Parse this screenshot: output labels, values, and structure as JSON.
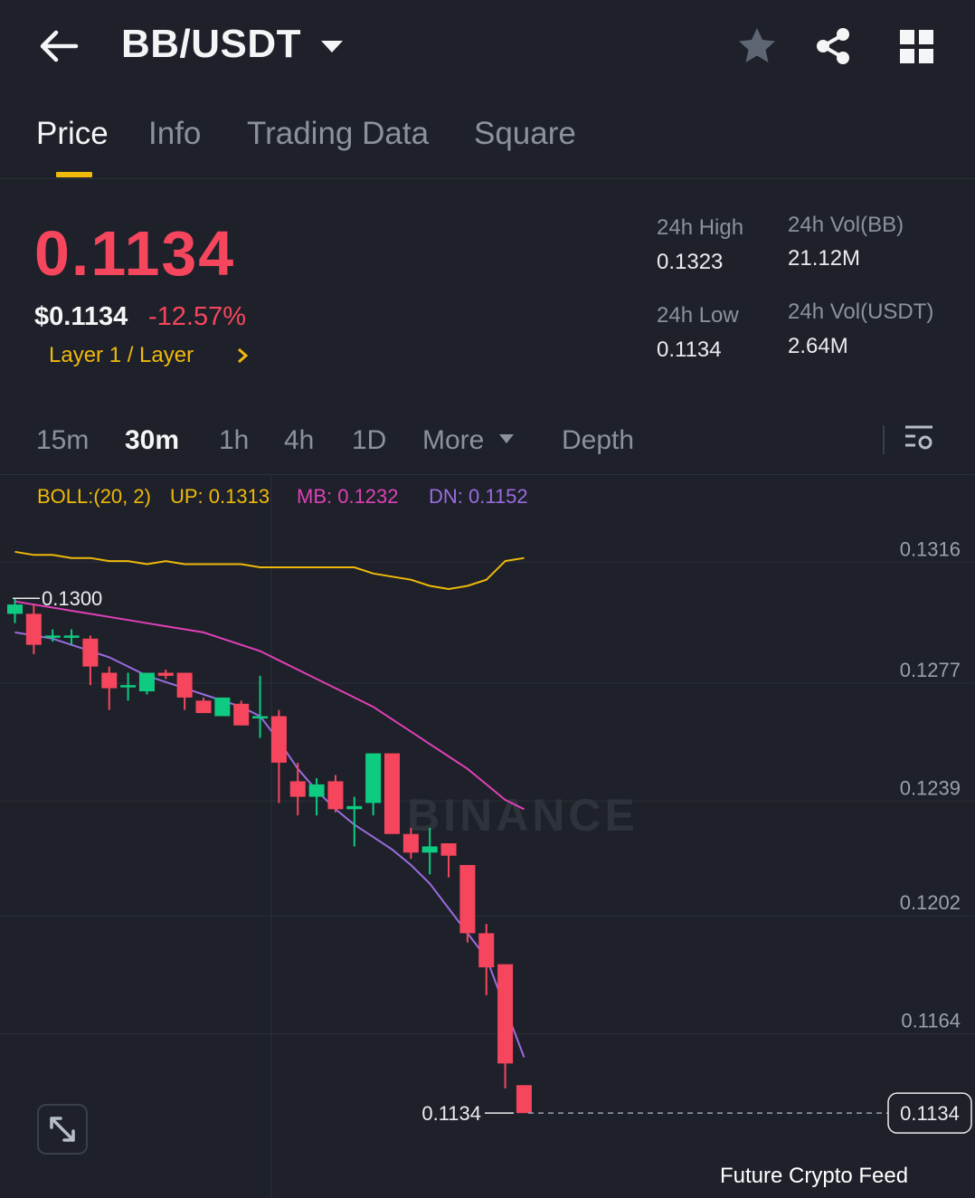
{
  "header": {
    "pair": "BB/USDT",
    "icons": {
      "back": "arrow-left-icon",
      "caret": "caret-down-icon",
      "favorite": "star-icon",
      "share": "share-icon",
      "menu": "grid-icon"
    }
  },
  "tabs": [
    {
      "label": "Price",
      "active": true
    },
    {
      "label": "Info",
      "active": false
    },
    {
      "label": "Trading Data",
      "active": false
    },
    {
      "label": "Square",
      "active": false
    }
  ],
  "price": {
    "last": "0.1134",
    "usd": "$0.1134",
    "change": "-12.57%",
    "sector": "Layer 1 / Layer"
  },
  "stats": {
    "high_label": "24h High",
    "high": "0.1323",
    "low_label": "24h Low",
    "low": "0.1134",
    "vol_base_label": "24h Vol(BB)",
    "vol_base": "21.12M",
    "vol_quote_label": "24h Vol(USDT)",
    "vol_quote": "2.64M"
  },
  "intervals": {
    "items": [
      "15m",
      "30m",
      "1h",
      "4h",
      "1D",
      "More"
    ],
    "active": "30m",
    "depth": "Depth"
  },
  "boll": {
    "title": "BOLL:(20, 2)",
    "up": "UP: 0.1313",
    "mb": "MB: 0.1232",
    "dn": "DN: 0.1152"
  },
  "colors": {
    "up": "#0ecb81",
    "down": "#f6465d",
    "boll_up": "#f0b90b",
    "boll_mb": "#e040b8",
    "boll_dn": "#9b6be0",
    "accent": "#f0b90b"
  },
  "chart_data": {
    "type": "candlestick",
    "interval": "30m",
    "y_ticks": [
      "0.1316",
      "0.1277",
      "0.1239",
      "0.1202",
      "0.1164"
    ],
    "ylim": [
      0.1118,
      0.1331
    ],
    "high_marker": "0.1300",
    "last_price_marker": "0.1134",
    "right_price_tag": "0.1134",
    "watermark": "BINANCE",
    "candles": [
      {
        "o": 0.1295,
        "h": 0.13,
        "l": 0.1292,
        "c": 0.1298
      },
      {
        "o": 0.1295,
        "h": 0.1298,
        "l": 0.1282,
        "c": 0.1285
      },
      {
        "o": 0.1288,
        "h": 0.129,
        "l": 0.1286,
        "c": 0.1288
      },
      {
        "o": 0.1288,
        "h": 0.129,
        "l": 0.1285,
        "c": 0.1288
      },
      {
        "o": 0.1287,
        "h": 0.1288,
        "l": 0.1272,
        "c": 0.1278
      },
      {
        "o": 0.1276,
        "h": 0.1278,
        "l": 0.1264,
        "c": 0.1271
      },
      {
        "o": 0.1272,
        "h": 0.1276,
        "l": 0.1267,
        "c": 0.1272
      },
      {
        "o": 0.127,
        "h": 0.1276,
        "l": 0.1269,
        "c": 0.1276
      },
      {
        "o": 0.1276,
        "h": 0.1277,
        "l": 0.1274,
        "c": 0.1275
      },
      {
        "o": 0.1276,
        "h": 0.1276,
        "l": 0.1264,
        "c": 0.1268
      },
      {
        "o": 0.1267,
        "h": 0.1268,
        "l": 0.1263,
        "c": 0.1263
      },
      {
        "o": 0.1262,
        "h": 0.1268,
        "l": 0.1262,
        "c": 0.1268
      },
      {
        "o": 0.1266,
        "h": 0.1267,
        "l": 0.1259,
        "c": 0.1259
      },
      {
        "o": 0.1262,
        "h": 0.1275,
        "l": 0.1255,
        "c": 0.1262
      },
      {
        "o": 0.1262,
        "h": 0.1264,
        "l": 0.1234,
        "c": 0.1247
      },
      {
        "o": 0.1241,
        "h": 0.1247,
        "l": 0.123,
        "c": 0.1236
      },
      {
        "o": 0.1236,
        "h": 0.1242,
        "l": 0.123,
        "c": 0.124
      },
      {
        "o": 0.1241,
        "h": 0.1243,
        "l": 0.1231,
        "c": 0.1232
      },
      {
        "o": 0.1232,
        "h": 0.1236,
        "l": 0.122,
        "c": 0.1233
      },
      {
        "o": 0.1234,
        "h": 0.125,
        "l": 0.123,
        "c": 0.125
      },
      {
        "o": 0.125,
        "h": 0.125,
        "l": 0.1224,
        "c": 0.1224
      },
      {
        "o": 0.1224,
        "h": 0.1226,
        "l": 0.1216,
        "c": 0.1218
      },
      {
        "o": 0.1218,
        "h": 0.1226,
        "l": 0.1211,
        "c": 0.122
      },
      {
        "o": 0.1221,
        "h": 0.1221,
        "l": 0.121,
        "c": 0.1217
      },
      {
        "o": 0.1214,
        "h": 0.1214,
        "l": 0.1189,
        "c": 0.1192
      },
      {
        "o": 0.1192,
        "h": 0.1195,
        "l": 0.1172,
        "c": 0.1181
      },
      {
        "o": 0.1182,
        "h": 0.1182,
        "l": 0.1142,
        "c": 0.115
      },
      {
        "o": 0.1143,
        "h": 0.1143,
        "l": 0.1134,
        "c": 0.1134
      }
    ],
    "boll_up": [
      0.1315,
      0.1314,
      0.1314,
      0.1313,
      0.1313,
      0.1312,
      0.1312,
      0.1311,
      0.1312,
      0.1311,
      0.1311,
      0.1311,
      0.1311,
      0.131,
      0.131,
      0.131,
      0.131,
      0.131,
      0.131,
      0.1308,
      0.1307,
      0.1306,
      0.1304,
      0.1303,
      0.1304,
      0.1306,
      0.1312,
      0.1313
    ],
    "boll_mb": [
      0.1299,
      0.1298,
      0.1297,
      0.1296,
      0.1295,
      0.1294,
      0.1293,
      0.1292,
      0.1291,
      0.129,
      0.1289,
      0.1287,
      0.1285,
      0.1283,
      0.128,
      0.1277,
      0.1274,
      0.1271,
      0.1268,
      0.1265,
      0.1261,
      0.1257,
      0.1253,
      0.1249,
      0.1245,
      0.124,
      0.1235,
      0.1232
    ],
    "boll_dn": [
      0.1289,
      0.1288,
      0.1287,
      0.1285,
      0.1283,
      0.1281,
      0.1278,
      0.1275,
      0.1273,
      0.1271,
      0.1269,
      0.1267,
      0.1265,
      0.1262,
      0.1254,
      0.1245,
      0.1238,
      0.1232,
      0.1227,
      0.1223,
      0.1219,
      0.1214,
      0.1208,
      0.12,
      0.1192,
      0.1184,
      0.1168,
      0.1152
    ]
  },
  "watermark_text": "Future Crypto Feed"
}
